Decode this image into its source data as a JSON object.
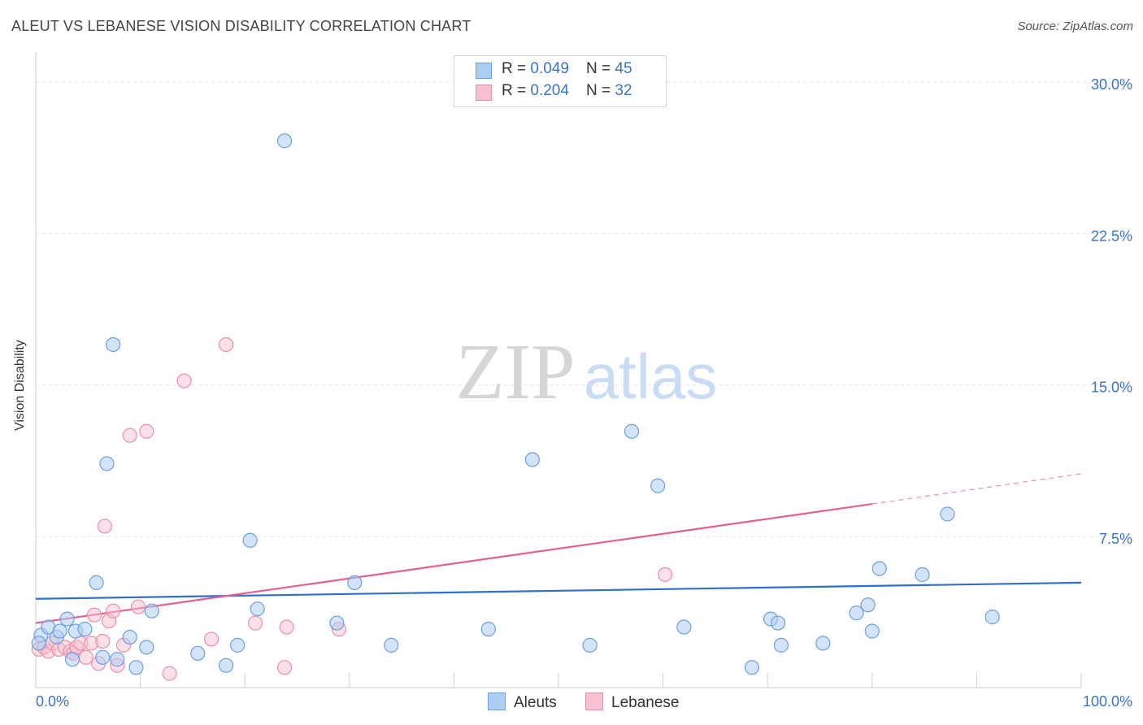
{
  "title": "ALEUT VS LEBANESE VISION DISABILITY CORRELATION CHART",
  "source": "Source: ZipAtlas.com",
  "watermark": {
    "zip": "ZIP",
    "atlas": "atlas"
  },
  "legend_top": [
    {
      "r_label": "R = ",
      "r_value": "0.049",
      "n_label": "N = ",
      "n_value": "45"
    },
    {
      "r_label": "R = ",
      "r_value": "0.204",
      "n_label": "N = ",
      "n_value": "32"
    }
  ],
  "colors": {
    "aleut_fill": "#aecdf2",
    "aleut_stroke": "#6c9fdf",
    "aleut_line": "#2f6fcf",
    "lebanese_fill": "#f8c1d0",
    "lebanese_stroke": "#ea8fa9",
    "lebanese_line": "#e5608c",
    "tick_label": "#3a74c4",
    "grid": "#e6e6e6"
  },
  "chart_data": {
    "type": "scatter",
    "title": "ALEUT VS LEBANESE VISION DISABILITY CORRELATION CHART",
    "xlabel": "",
    "ylabel": "Vision Disability",
    "xlim": [
      0,
      100
    ],
    "ylim": [
      0,
      31.5
    ],
    "x_tick_labels": [
      "0.0%",
      "100.0%"
    ],
    "y_ticks": [
      7.5,
      15.0,
      22.5,
      30.0
    ],
    "y_tick_labels": [
      "7.5%",
      "15.0%",
      "22.5%",
      "30.0%"
    ],
    "legend_position": "bottom-center",
    "series": [
      {
        "name": "Aleuts",
        "r": 0.049,
        "n": 45,
        "trend": {
          "x0": 0,
          "y0": 4.4,
          "x1": 100,
          "y1": 5.2
        },
        "points": [
          [
            0.5,
            2.6
          ],
          [
            1.2,
            3.0
          ],
          [
            2.0,
            2.5
          ],
          [
            2.3,
            2.8
          ],
          [
            3.0,
            3.4
          ],
          [
            3.5,
            1.4
          ],
          [
            3.8,
            2.8
          ],
          [
            4.7,
            2.9
          ],
          [
            5.8,
            5.2
          ],
          [
            6.4,
            1.5
          ],
          [
            6.8,
            11.1
          ],
          [
            7.4,
            17.0
          ],
          [
            7.8,
            1.4
          ],
          [
            9.0,
            2.5
          ],
          [
            9.6,
            1.0
          ],
          [
            10.6,
            2.0
          ],
          [
            11.1,
            3.8
          ],
          [
            15.5,
            1.7
          ],
          [
            18.2,
            1.1
          ],
          [
            19.3,
            2.1
          ],
          [
            20.5,
            7.3
          ],
          [
            21.2,
            3.9
          ],
          [
            23.8,
            27.1
          ],
          [
            28.8,
            3.2
          ],
          [
            30.5,
            5.2
          ],
          [
            34.0,
            2.1
          ],
          [
            43.3,
            2.9
          ],
          [
            47.5,
            11.3
          ],
          [
            53.0,
            2.1
          ],
          [
            57.0,
            12.7
          ],
          [
            59.5,
            10.0
          ],
          [
            62.0,
            3.0
          ],
          [
            68.5,
            1.0
          ],
          [
            70.3,
            3.4
          ],
          [
            71.0,
            3.2
          ],
          [
            71.3,
            2.1
          ],
          [
            75.3,
            2.2
          ],
          [
            78.5,
            3.7
          ],
          [
            79.6,
            4.1
          ],
          [
            80.0,
            2.8
          ],
          [
            80.7,
            5.9
          ],
          [
            84.8,
            5.6
          ],
          [
            87.2,
            8.6
          ],
          [
            91.5,
            3.5
          ],
          [
            0.3,
            2.2
          ]
        ]
      },
      {
        "name": "Lebanese",
        "r": 0.204,
        "n": 32,
        "trend": {
          "x0": 0,
          "y0": 3.2,
          "x1": 80,
          "y1": 9.1,
          "dash_to_x": 100,
          "dash_to_y": 10.6
        },
        "points": [
          [
            0.3,
            1.9
          ],
          [
            0.8,
            2.0
          ],
          [
            1.2,
            1.8
          ],
          [
            1.6,
            2.2
          ],
          [
            2.2,
            1.9
          ],
          [
            2.8,
            2.0
          ],
          [
            3.3,
            1.8
          ],
          [
            3.6,
            1.7
          ],
          [
            3.9,
            2.0
          ],
          [
            4.3,
            2.2
          ],
          [
            4.8,
            1.5
          ],
          [
            5.3,
            2.2
          ],
          [
            5.6,
            3.6
          ],
          [
            6.0,
            1.2
          ],
          [
            6.4,
            2.3
          ],
          [
            6.6,
            8.0
          ],
          [
            7.0,
            3.3
          ],
          [
            7.4,
            3.8
          ],
          [
            7.8,
            1.1
          ],
          [
            8.4,
            2.1
          ],
          [
            9.0,
            12.5
          ],
          [
            9.8,
            4.0
          ],
          [
            10.6,
            12.7
          ],
          [
            12.8,
            0.7
          ],
          [
            14.2,
            15.2
          ],
          [
            16.8,
            2.4
          ],
          [
            18.2,
            17.0
          ],
          [
            21.0,
            3.2
          ],
          [
            23.8,
            1.0
          ],
          [
            24.0,
            3.0
          ],
          [
            29.0,
            2.9
          ],
          [
            60.2,
            5.6
          ]
        ]
      }
    ]
  }
}
